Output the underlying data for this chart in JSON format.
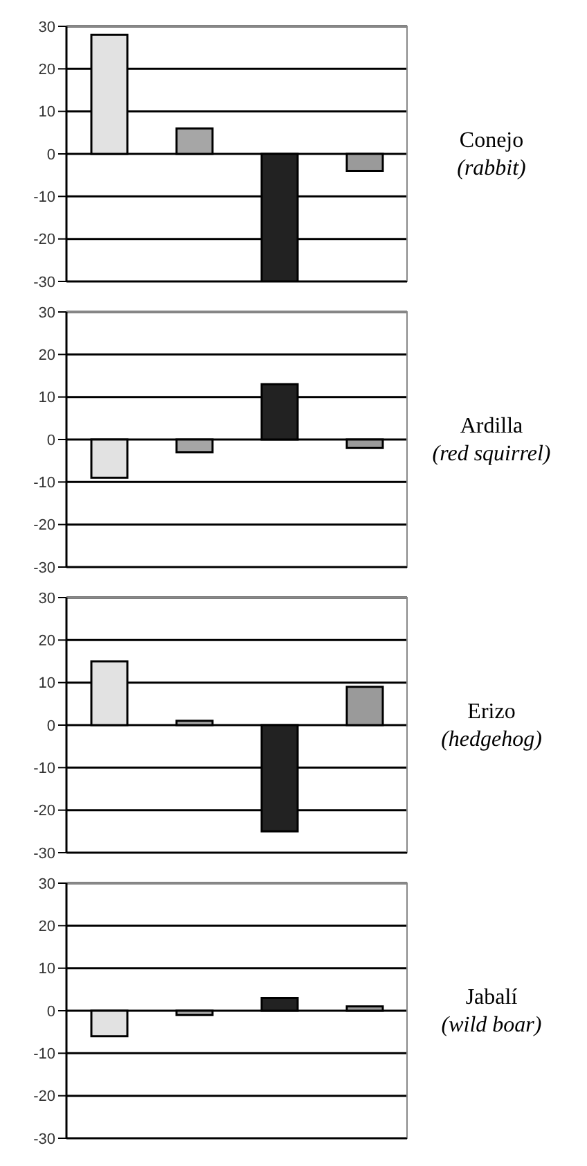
{
  "chart_data": [
    {
      "type": "bar",
      "annotations": [
        "Conejo",
        "(rabbit)"
      ],
      "categories": [
        null,
        null,
        null,
        null
      ],
      "values": [
        28,
        6,
        -30,
        -4
      ],
      "colors": [
        "#e2e2e2",
        "#a6a6a6",
        "#222222",
        "#9a9a9a"
      ],
      "ylim": [
        -30,
        30
      ],
      "yticks": [
        -30,
        -20,
        -10,
        0,
        10,
        20,
        30
      ],
      "grid": "y",
      "tick_labels": "y"
    },
    {
      "type": "bar",
      "annotations": [
        "Ardilla",
        "(red squirrel)"
      ],
      "categories": [
        null,
        null,
        null,
        null
      ],
      "values": [
        -9,
        -3,
        13,
        -2
      ],
      "colors": [
        "#e2e2e2",
        "#a6a6a6",
        "#222222",
        "#9a9a9a"
      ],
      "ylim": [
        -30,
        30
      ],
      "yticks": [
        -30,
        -20,
        -10,
        0,
        10,
        20,
        30
      ],
      "grid": "y",
      "tick_labels": "y"
    },
    {
      "type": "bar",
      "annotations": [
        "Erizo",
        "(hedgehog)"
      ],
      "categories": [
        null,
        null,
        null,
        null
      ],
      "values": [
        15,
        1,
        -25,
        9
      ],
      "colors": [
        "#e2e2e2",
        "#a6a6a6",
        "#222222",
        "#9a9a9a"
      ],
      "ylim": [
        -30,
        30
      ],
      "yticks": [
        -30,
        -20,
        -10,
        0,
        10,
        20,
        30
      ],
      "grid": "y",
      "tick_labels": "y"
    },
    {
      "type": "bar",
      "annotations": [
        "Jabalí",
        "(wild boar)"
      ],
      "categories": [
        null,
        null,
        null,
        null
      ],
      "values": [
        -6,
        -1,
        3,
        1
      ],
      "colors": [
        "#e2e2e2",
        "#a6a6a6",
        "#222222",
        "#9a9a9a"
      ],
      "ylim": [
        -30,
        30
      ],
      "yticks": [
        -30,
        -20,
        -10,
        0,
        10,
        20,
        30
      ],
      "grid": "y",
      "tick_labels": "y"
    }
  ]
}
